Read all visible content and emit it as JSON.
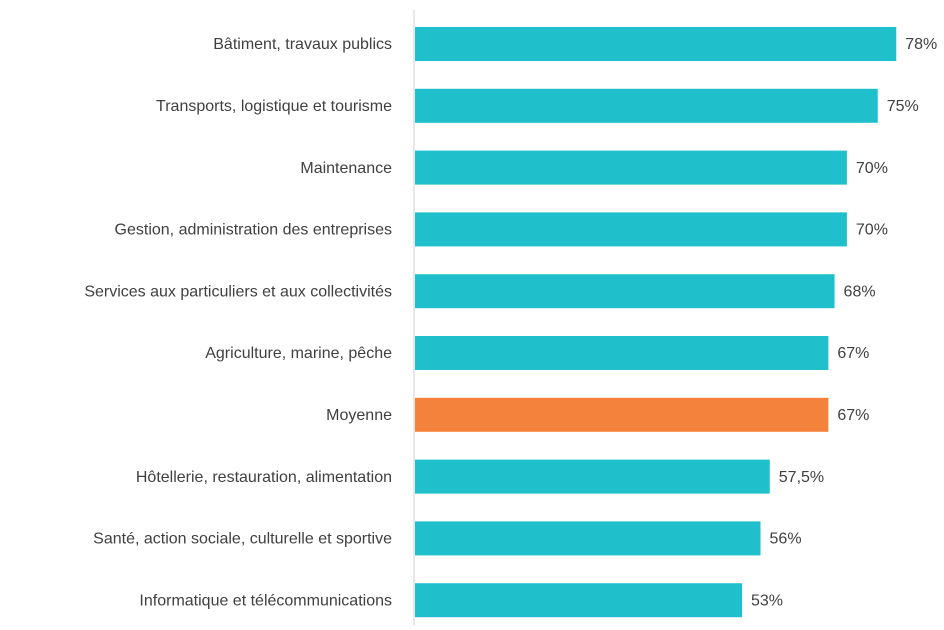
{
  "chart_data": {
    "type": "hbar",
    "categories": [
      "Bâtiment, travaux publics",
      "Transports, logistique et tourisme",
      "Maintenance",
      "Gestion, administration des entreprises",
      "Services aux particuliers et aux collectivités",
      "Agriculture, marine, pêche",
      "Moyenne",
      "Hôtellerie, restauration, alimentation",
      "Santé, action sociale, culturelle et sportive",
      "Informatique et télécommunications"
    ],
    "values": [
      78,
      75,
      70,
      70,
      68,
      67,
      67,
      57.5,
      56,
      53
    ],
    "value_labels": [
      "78%",
      "75%",
      "70%",
      "70%",
      "68%",
      "67%",
      "67%",
      "57,5%",
      "56%",
      "53%"
    ],
    "colors": [
      "#1fbfcc",
      "#1fbfcc",
      "#1fbfcc",
      "#1fbfcc",
      "#1fbfcc",
      "#1fbfcc",
      "#f5823c",
      "#1fbfcc",
      "#1fbfcc",
      "#1fbfcc"
    ]
  }
}
